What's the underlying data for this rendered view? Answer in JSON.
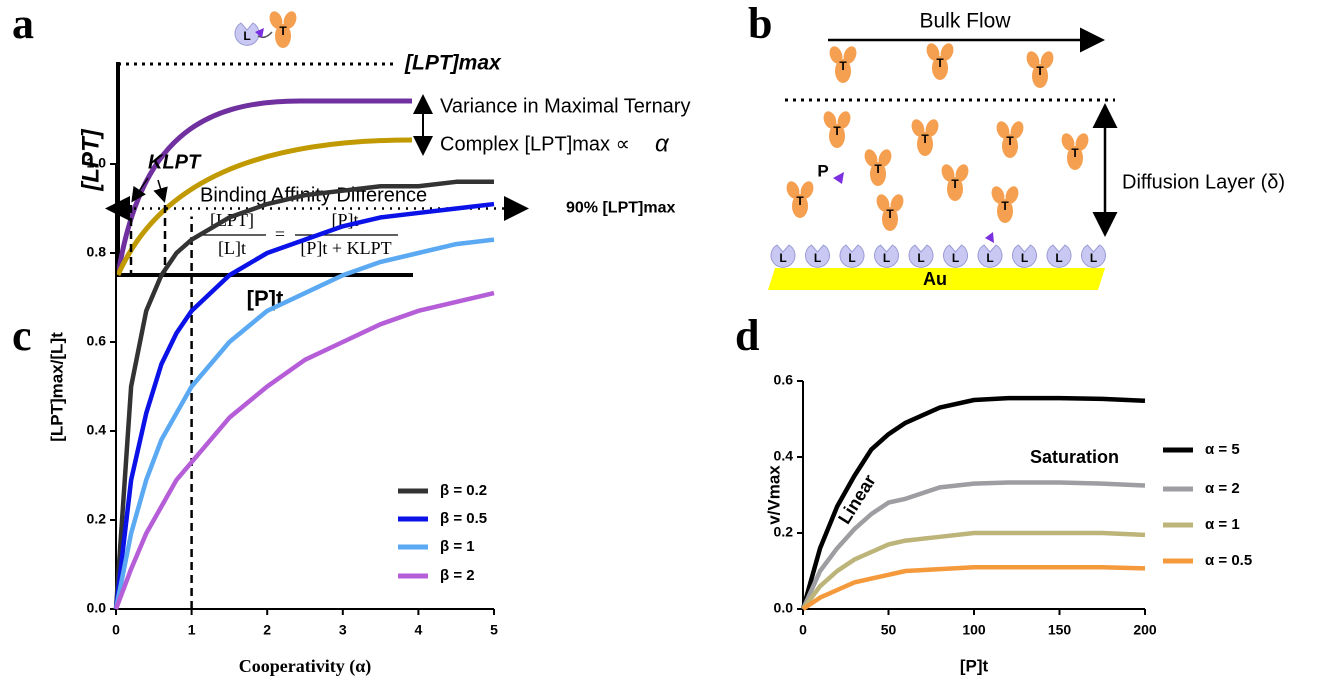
{
  "panel_labels": {
    "a": "a",
    "b": "b",
    "c": "c",
    "d": "d"
  },
  "panel_a": {
    "y_label": "[LPT]",
    "x_label": "[P]t",
    "max_label": "[LPT]max",
    "k_label": "KLPT",
    "variance_text_1": "Variance in Maximal Ternary",
    "variance_text_2": "Complex [LPT]max ∝",
    "alpha": "α",
    "affinity_text": "Binding Affinity Difference",
    "equation": {
      "lhs_num": "[LPT]",
      "lhs_den": "[L]t",
      "equals": "=",
      "rhs_num": "[P]t",
      "rhs_den": "[P]t + KLPT"
    }
  },
  "panel_b": {
    "flow_label": "Bulk Flow",
    "layer_label": "Diffusion Layer (δ)",
    "surface_label": "Au"
  },
  "icons": {
    "ligand": "L",
    "target": "T",
    "protac": "P"
  },
  "chart_data": [
    {
      "type": "line",
      "x_label": "Cooperativity (α)",
      "y_label": "[LPT]max/[L]t",
      "x": [
        0,
        0.2,
        0.4,
        0.6,
        0.8,
        1,
        1.5,
        2,
        2.5,
        3,
        3.5,
        4,
        4.5,
        5
      ],
      "xlim": [
        0,
        5
      ],
      "xticks": [
        0,
        1,
        2,
        3,
        4,
        5
      ],
      "ylim": [
        0,
        1
      ],
      "yticks": [
        {
          "value": 0,
          "label": "0.0"
        },
        0.2,
        0.4,
        0.6,
        0.8,
        {
          "value": 1,
          "label": "1.0"
        }
      ],
      "series": [
        {
          "name": "β = 0.2",
          "color": "#333333",
          "values": [
            0,
            0.5,
            0.67,
            0.75,
            0.8,
            0.83,
            0.88,
            0.91,
            0.93,
            0.94,
            0.95,
            0.95,
            0.96,
            0.96
          ]
        },
        {
          "name": "β = 0.5",
          "color": "#0a12e8",
          "values": [
            0,
            0.29,
            0.44,
            0.55,
            0.62,
            0.67,
            0.75,
            0.8,
            0.83,
            0.86,
            0.88,
            0.89,
            0.9,
            0.91
          ]
        },
        {
          "name": "β = 1",
          "color": "#5aa9f2",
          "values": [
            0,
            0.17,
            0.29,
            0.38,
            0.44,
            0.5,
            0.6,
            0.67,
            0.71,
            0.75,
            0.78,
            0.8,
            0.82,
            0.83
          ]
        },
        {
          "name": "β = 2",
          "color": "#b55ed8",
          "values": [
            0,
            0.09,
            0.17,
            0.23,
            0.29,
            0.33,
            0.43,
            0.5,
            0.56,
            0.6,
            0.64,
            0.67,
            0.69,
            0.71
          ]
        }
      ],
      "reference_lines": {
        "y": 0.9,
        "x": 1
      },
      "annotations": [
        "90% [LPT]max"
      ],
      "legend": "lower-right"
    },
    {
      "type": "line",
      "x_label": "[P]t",
      "y_label": "v/Vmax",
      "x": [
        0,
        10,
        20,
        30,
        40,
        50,
        60,
        80,
        100,
        120,
        150,
        175,
        200
      ],
      "xlim": [
        0,
        200
      ],
      "xticks": [
        0,
        50,
        100,
        150,
        200
      ],
      "ylim": [
        0,
        0.6
      ],
      "yticks": [
        {
          "value": 0,
          "label": "0.0"
        },
        0.2,
        0.4,
        0.6
      ],
      "series": [
        {
          "name": "α = 5",
          "color": "#000000",
          "values": [
            0,
            0.16,
            0.27,
            0.35,
            0.42,
            0.46,
            0.49,
            0.53,
            0.55,
            0.555,
            0.555,
            0.553,
            0.548
          ]
        },
        {
          "name": "α = 2",
          "color": "#9e9ea2",
          "values": [
            0,
            0.1,
            0.16,
            0.21,
            0.25,
            0.28,
            0.29,
            0.32,
            0.33,
            0.333,
            0.333,
            0.33,
            0.325
          ]
        },
        {
          "name": "α = 1",
          "color": "#bdb47a",
          "values": [
            0,
            0.06,
            0.1,
            0.13,
            0.15,
            0.17,
            0.18,
            0.19,
            0.2,
            0.2,
            0.2,
            0.2,
            0.195
          ]
        },
        {
          "name": "α = 0.5",
          "color": "#f59a3c",
          "values": [
            0,
            0.03,
            0.05,
            0.07,
            0.08,
            0.09,
            0.1,
            0.105,
            0.11,
            0.11,
            0.11,
            0.11,
            0.107
          ]
        }
      ],
      "annotations": [
        "Linear",
        "Saturation"
      ],
      "legend": "right"
    }
  ]
}
